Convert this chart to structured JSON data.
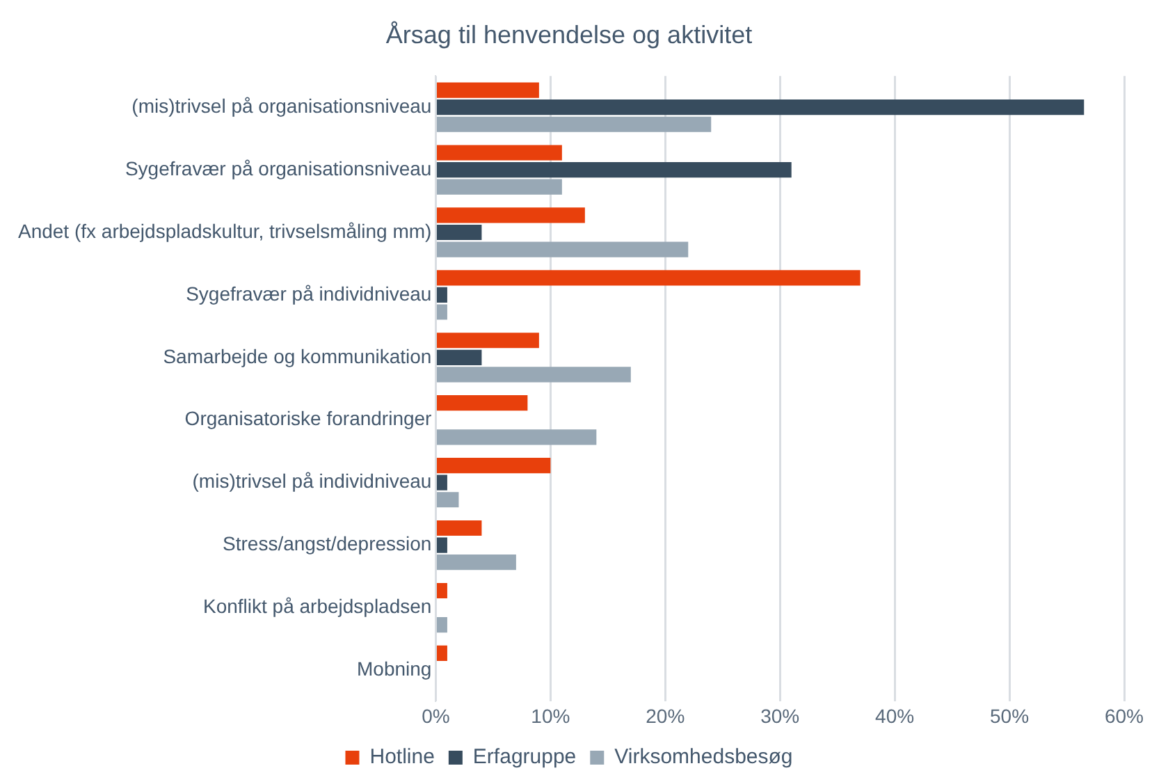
{
  "chart_data": {
    "type": "bar",
    "orientation": "horizontal",
    "title": "Årsag til henvendelse og aktivitet",
    "categories": [
      "(mis)trivsel på organisationsniveau",
      "Sygefravær på organisationsniveau",
      "Andet (fx arbejdspladskultur, trivselsmåling mm)",
      "Sygefravær på individniveau",
      "Samarbejde og kommunikation",
      "Organisatoriske forandringer",
      "(mis)trivsel på individniveau",
      "Stress/angst/depression",
      "Konflikt på arbejdspladsen",
      "Mobning"
    ],
    "series": [
      {
        "name": "Hotline",
        "color": "#e8400c",
        "values": [
          9,
          11,
          13,
          37,
          9,
          8,
          10,
          4,
          1,
          1
        ]
      },
      {
        "name": "Erfagruppe",
        "color": "#374c5e",
        "values": [
          56.5,
          31,
          4,
          1,
          4,
          0,
          1,
          1,
          0,
          0
        ]
      },
      {
        "name": "Virksomhedsbesøg",
        "color": "#98a8b5",
        "values": [
          24,
          11,
          22,
          1,
          17,
          14,
          2,
          7,
          1,
          0
        ]
      }
    ],
    "xlim": [
      0,
      60
    ],
    "xticks": [
      {
        "value": 0,
        "label": "0%"
      },
      {
        "value": 10,
        "label": "10%"
      },
      {
        "value": 20,
        "label": "20%"
      },
      {
        "value": 30,
        "label": "30%"
      },
      {
        "value": 40,
        "label": "40%"
      },
      {
        "value": 50,
        "label": "50%"
      },
      {
        "value": 60,
        "label": "60%"
      }
    ],
    "grid": "x",
    "legend": "bottom"
  }
}
